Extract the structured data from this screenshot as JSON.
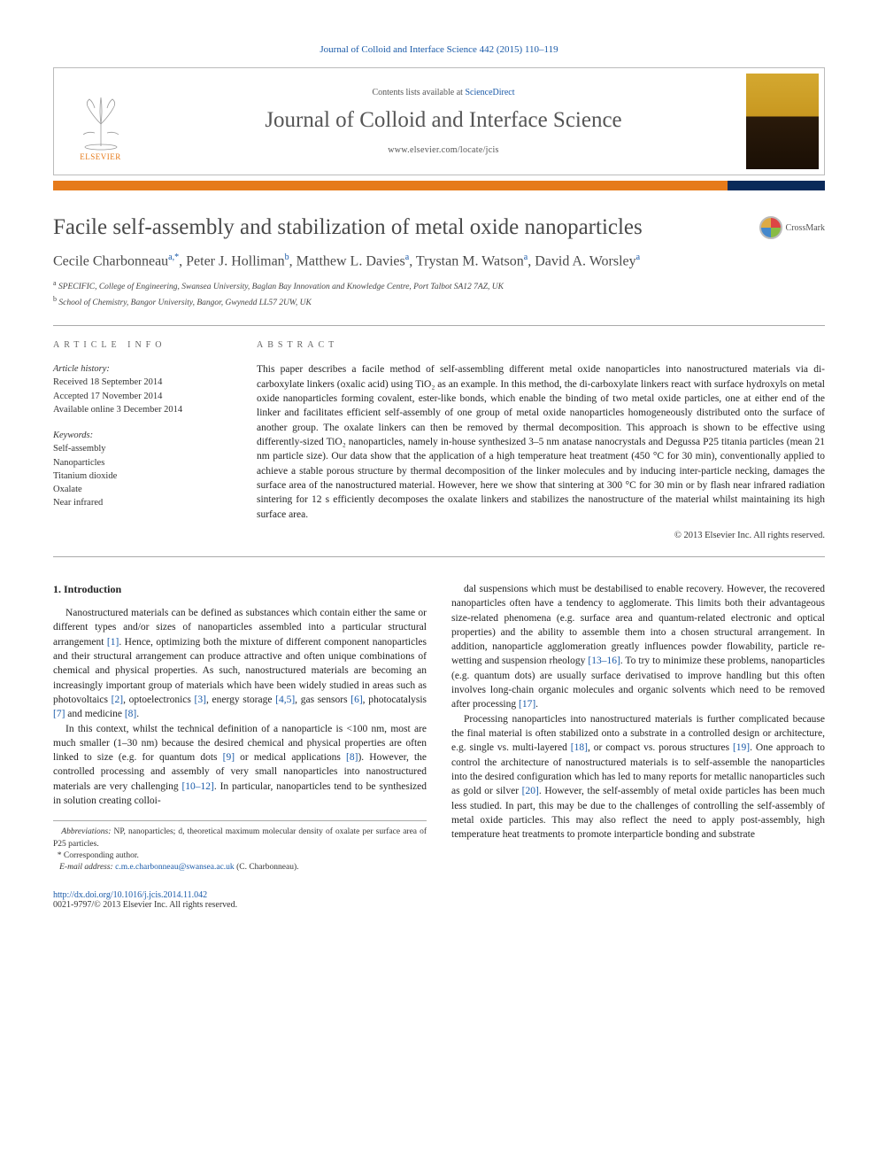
{
  "top_citation": "Journal of Colloid and Interface Science 442 (2015) 110–119",
  "header": {
    "elsevier_label": "ELSEVIER",
    "contents_prefix": "Contents lists available at ",
    "contents_link": "ScienceDirect",
    "journal_title": "Journal of Colloid and Interface Science",
    "journal_url": "www.elsevier.com/locate/jcis",
    "colors": {
      "orange": "#e67a1a",
      "navy": "#0a2a5a",
      "link": "#1a5aa8"
    }
  },
  "article": {
    "title": "Facile self-assembly and stabilization of metal oxide nanoparticles",
    "crossmark_label": "CrossMark",
    "authors_html": "Cecile Charbonneau|a,*|, Peter J. Holliman|b|, Matthew L. Davies|a|, Trystan M. Watson|a|, David A. Worsley|a|",
    "affiliations": [
      "a|SPECIFIC, College of Engineering, Swansea University, Baglan Bay Innovation and Knowledge Centre, Port Talbot SA12 7AZ, UK",
      "b|School of Chemistry, Bangor University, Bangor, Gwynedd LL57 2UW, UK"
    ]
  },
  "meta": {
    "info_head": "ARTICLE INFO",
    "abstract_head": "ABSTRACT",
    "history_label": "Article history:",
    "history": [
      "Received 18 September 2014",
      "Accepted 17 November 2014",
      "Available online 3 December 2014"
    ],
    "keywords_label": "Keywords:",
    "keywords": [
      "Self-assembly",
      "Nanoparticles",
      "Titanium dioxide",
      "Oxalate",
      "Near infrared"
    ],
    "abstract": "This paper describes a facile method of self-assembling different metal oxide nanoparticles into nanostructured materials via di-carboxylate linkers (oxalic acid) using TiO₂ as an example. In this method, the di-carboxylate linkers react with surface hydroxyls on metal oxide nanoparticles forming covalent, ester-like bonds, which enable the binding of two metal oxide particles, one at either end of the linker and facilitates efficient self-assembly of one group of metal oxide nanoparticles homogeneously distributed onto the surface of another group. The oxalate linkers can then be removed by thermal decomposition. This approach is shown to be effective using differently-sized TiO₂ nanoparticles, namely in-house synthesized 3–5 nm anatase nanocrystals and Degussa P25 titania particles (mean 21 nm particle size). Our data show that the application of a high temperature heat treatment (450 °C for 30 min), conventionally applied to achieve a stable porous structure by thermal decomposition of the linker molecules and by inducing inter-particle necking, damages the surface area of the nanostructured material. However, here we show that sintering at 300 °C for 30 min or by flash near infrared radiation sintering for 12 s efficiently decomposes the oxalate linkers and stabilizes the nanostructure of the material whilst maintaining its high surface area.",
    "copyright": "© 2013 Elsevier Inc. All rights reserved."
  },
  "body": {
    "section_head": "1. Introduction",
    "col1": [
      "Nanostructured materials can be defined as substances which contain either the same or different types and/or sizes of nanoparticles assembled into a particular structural arrangement [1]. Hence, optimizing both the mixture of different component nanoparticles and their structural arrangement can produce attractive and often unique combinations of chemical and physical properties. As such, nanostructured materials are becoming an increasingly important group of materials which have been widely studied in areas such as photovoltaics [2], optoelectronics [3], energy storage [4,5], gas sensors [6], photocatalysis [7] and medicine [8].",
      "In this context, whilst the technical definition of a nanoparticle is <100 nm, most are much smaller (1–30 nm) because the desired chemical and physical properties are often linked to size (e.g. for quantum dots [9] or medical applications [8]). However, the controlled processing and assembly of very small nanoparticles into nanostructured materials are very challenging [10–12]. In particular, nanoparticles tend to be synthesized in solution creating colloi-"
    ],
    "col2": [
      "dal suspensions which must be destabilised to enable recovery. However, the recovered nanoparticles often have a tendency to agglomerate. This limits both their advantageous size-related phenomena (e.g. surface area and quantum-related electronic and optical properties) and the ability to assemble them into a chosen structural arrangement. In addition, nanoparticle agglomeration greatly influences powder flowability, particle re-wetting and suspension rheology [13–16]. To try to minimize these problems, nanoparticles (e.g. quantum dots) are usually surface derivatised to improve handling but this often involves long-chain organic molecules and organic solvents which need to be removed after processing [17].",
      "Processing nanoparticles into nanostructured materials is further complicated because the final material is often stabilized onto a substrate in a controlled design or architecture, e.g. single vs. multi-layered [18], or compact vs. porous structures [19]. One approach to control the architecture of nanostructured materials is to self-assemble the nanoparticles into the desired configuration which has led to many reports for metallic nanoparticles such as gold or silver [20]. However, the self-assembly of metal oxide particles has been much less studied. In part, this may be due to the challenges of controlling the self-assembly of metal oxide particles. This may also reflect the need to apply post-assembly, high temperature heat treatments to promote interparticle bonding and substrate"
    ]
  },
  "footnotes": {
    "abbrev_label": "Abbreviations:",
    "abbrev_text": " NP, nanoparticles; d, theoretical maximum molecular density of oxalate per surface area of P25 particles.",
    "corr_marker": "*",
    "corr_text": " Corresponding author.",
    "email_label": "E-mail address:",
    "email": "c.m.e.charbonneau@swansea.ac.uk",
    "email_suffix": " (C. Charbonneau)."
  },
  "footer": {
    "doi": "http://dx.doi.org/10.1016/j.jcis.2014.11.042",
    "issn_line": "0021-9797/© 2013 Elsevier Inc. All rights reserved."
  }
}
